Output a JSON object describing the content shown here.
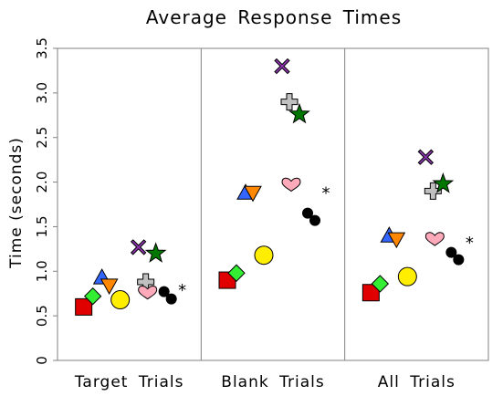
{
  "chart_data": {
    "type": "scatter",
    "title": "Average Response Times",
    "xlabel": "",
    "ylabel": "Time (seconds)",
    "ylim": [
      0,
      3.5
    ],
    "yticks": [
      "0",
      "0.5",
      "1.0",
      "1.5",
      "2.0",
      "2.5",
      "3.0",
      "3.5"
    ],
    "categories": [
      "Target Trials",
      "Blank Trials",
      "All Trials"
    ],
    "grid": "vertical separators between categories",
    "legend": "none",
    "series": [
      {
        "marker": "square",
        "color": "#e00000",
        "values": [
          0.6,
          0.9,
          0.76
        ]
      },
      {
        "marker": "diamond",
        "color": "#33ee33",
        "values": [
          0.72,
          0.98,
          0.86
        ]
      },
      {
        "marker": "triangle-up",
        "color": "#3366ff",
        "values": [
          0.93,
          1.88,
          1.4
        ]
      },
      {
        "marker": "triangle-down",
        "color": "#ff8800",
        "values": [
          0.84,
          1.88,
          1.36
        ]
      },
      {
        "marker": "circle",
        "color": "#ffee00",
        "values": [
          0.68,
          1.18,
          0.94
        ]
      },
      {
        "marker": "x",
        "color": "#8833aa",
        "values": [
          1.27,
          3.3,
          2.28
        ]
      },
      {
        "marker": "cross",
        "color": "#c0c0c0",
        "values": [
          0.88,
          2.9,
          1.9
        ]
      },
      {
        "marker": "heart",
        "color": "#ffaabb",
        "values": [
          0.76,
          1.97,
          1.36
        ]
      },
      {
        "marker": "star",
        "color": "#007700",
        "values": [
          1.2,
          2.76,
          1.98
        ]
      },
      {
        "marker": "double-dot",
        "color": "#000000",
        "values": [
          0.73,
          1.61,
          1.17
        ]
      },
      {
        "marker": "asterisk",
        "color": "#000000",
        "label": "*",
        "values": [
          0.82,
          1.91,
          1.35
        ]
      }
    ]
  }
}
